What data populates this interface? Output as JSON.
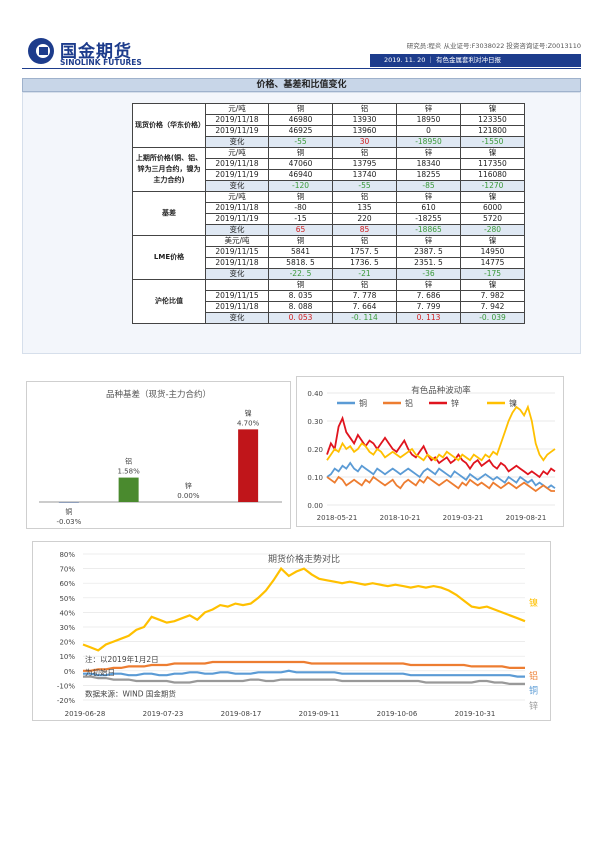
{
  "header": {
    "brand_cn": "国金期货",
    "brand_en": "SINOLINK FUTURES",
    "meta": "研究员:程炎  从业证号:F3038022  投资咨询证号:Z0013110",
    "date_tag": "2019. 11. 20  ｜ 有色金属套利对冲日报"
  },
  "section_title": "价格、基差和比值变化",
  "table": {
    "metals": [
      "铜",
      "铝",
      "锌",
      "镍"
    ],
    "groups": [
      {
        "name": "现货价格（华东价格）",
        "unit": "元/吨",
        "rows": [
          {
            "label": "2019/11/18",
            "values": [
              "46980",
              "13930",
              "18950",
              "123350"
            ]
          },
          {
            "label": "2019/11/19",
            "values": [
              "46925",
              "13960",
              "0",
              "121800"
            ]
          },
          {
            "label": "变化",
            "values": [
              "-55",
              "30",
              "-18950",
              "-1550"
            ]
          }
        ]
      },
      {
        "name": "上期所价格(铜、铝、锌为三月合约，镍为主力合约)",
        "unit": "元/吨",
        "rows": [
          {
            "label": "2019/11/18",
            "values": [
              "47060",
              "13795",
              "18340",
              "117350"
            ]
          },
          {
            "label": "2019/11/19",
            "values": [
              "46940",
              "13740",
              "18255",
              "116080"
            ]
          },
          {
            "label": "变化",
            "values": [
              "-120",
              "-55",
              "-85",
              "-1270"
            ]
          }
        ]
      },
      {
        "name": "基差",
        "unit": "元/吨",
        "rows": [
          {
            "label": "2019/11/18",
            "values": [
              "-80",
              "135",
              "610",
              "6000"
            ]
          },
          {
            "label": "2019/11/19",
            "values": [
              "-15",
              "220",
              "-18255",
              "5720"
            ]
          },
          {
            "label": "变化",
            "values": [
              "65",
              "85",
              "-18865",
              "-280"
            ]
          }
        ]
      },
      {
        "name": "LME价格",
        "unit": "美元/吨",
        "rows": [
          {
            "label": "2019/11/15",
            "values": [
              "5841",
              "1757. 5",
              "2387. 5",
              "14950"
            ]
          },
          {
            "label": "2019/11/18",
            "values": [
              "5818. 5",
              "1736. 5",
              "2351. 5",
              "14775"
            ]
          },
          {
            "label": "变化",
            "values": [
              "-22. 5",
              "-21",
              "-36",
              "-175"
            ]
          }
        ]
      },
      {
        "name": "沪伦比值",
        "unit": "",
        "rows": [
          {
            "label": "2019/11/15",
            "values": [
              "8. 035",
              "7. 778",
              "7. 686",
              "7. 982"
            ]
          },
          {
            "label": "2019/11/18",
            "values": [
              "8. 088",
              "7. 664",
              "7. 799",
              "7. 942"
            ]
          },
          {
            "label": "变化",
            "values": [
              "0. 053",
              "-0. 114",
              "0. 113",
              "-0. 039"
            ]
          }
        ]
      }
    ]
  },
  "chart_data": [
    {
      "type": "bar",
      "title": "品种基差（现货-主力合约）",
      "categories": [
        "铜",
        "铝",
        "锌",
        "镍"
      ],
      "values": [
        -0.03,
        1.58,
        0.0,
        4.7
      ],
      "value_labels": [
        "-0.03%",
        "1.58%",
        "0.00%",
        "4.70%"
      ],
      "colors": [
        "#1f3f7a",
        "#4a8a2e",
        "#999999",
        "#c0151a"
      ],
      "ylim": [
        -0.5,
        5.5
      ]
    },
    {
      "type": "line",
      "title": "有色品种波动率",
      "x_ticks": [
        "2018-05-21",
        "2018-10-21",
        "2019-03-21",
        "2019-08-21"
      ],
      "y_ticks": [
        "0.00",
        "0.10",
        "0.20",
        "0.30",
        "0.40"
      ],
      "ylim": [
        0,
        0.4
      ],
      "legend": "top",
      "series": [
        {
          "name": "铜",
          "color": "#5b9bd5",
          "values": [
            0.1,
            0.11,
            0.13,
            0.12,
            0.14,
            0.13,
            0.15,
            0.13,
            0.12,
            0.14,
            0.13,
            0.12,
            0.11,
            0.13,
            0.12,
            0.11,
            0.12,
            0.13,
            0.12,
            0.11,
            0.12,
            0.13,
            0.12,
            0.11,
            0.1,
            0.12,
            0.13,
            0.12,
            0.11,
            0.13,
            0.12,
            0.11,
            0.1,
            0.12,
            0.11,
            0.1,
            0.09,
            0.11,
            0.1,
            0.09,
            0.1,
            0.11,
            0.1,
            0.09,
            0.1,
            0.09,
            0.08,
            0.1,
            0.09,
            0.08,
            0.1,
            0.09,
            0.08,
            0.09,
            0.07,
            0.08,
            0.07,
            0.06,
            0.07,
            0.06
          ]
        },
        {
          "name": "铝",
          "color": "#ed7d31",
          "values": [
            0.1,
            0.09,
            0.08,
            0.1,
            0.09,
            0.07,
            0.08,
            0.09,
            0.08,
            0.07,
            0.09,
            0.08,
            0.1,
            0.09,
            0.08,
            0.07,
            0.08,
            0.09,
            0.07,
            0.06,
            0.08,
            0.09,
            0.08,
            0.07,
            0.09,
            0.08,
            0.1,
            0.09,
            0.08,
            0.07,
            0.08,
            0.09,
            0.08,
            0.07,
            0.06,
            0.08,
            0.07,
            0.09,
            0.08,
            0.07,
            0.08,
            0.07,
            0.06,
            0.08,
            0.07,
            0.06,
            0.07,
            0.08,
            0.07,
            0.06,
            0.07,
            0.08,
            0.07,
            0.06,
            0.05,
            0.06,
            0.07,
            0.06,
            0.05,
            0.05
          ]
        },
        {
          "name": "锌",
          "color": "#e0141e",
          "values": [
            0.18,
            0.22,
            0.2,
            0.28,
            0.31,
            0.26,
            0.24,
            0.22,
            0.25,
            0.23,
            0.21,
            0.23,
            0.22,
            0.2,
            0.22,
            0.24,
            0.22,
            0.2,
            0.19,
            0.21,
            0.23,
            0.2,
            0.18,
            0.17,
            0.19,
            0.21,
            0.18,
            0.16,
            0.17,
            0.15,
            0.16,
            0.17,
            0.15,
            0.16,
            0.18,
            0.16,
            0.15,
            0.13,
            0.15,
            0.16,
            0.14,
            0.15,
            0.16,
            0.14,
            0.13,
            0.15,
            0.14,
            0.12,
            0.13,
            0.14,
            0.13,
            0.12,
            0.11,
            0.12,
            0.11,
            0.1,
            0.12,
            0.11,
            0.13,
            0.12
          ]
        },
        {
          "name": "镍",
          "color": "#ffc000",
          "values": [
            0.16,
            0.18,
            0.2,
            0.19,
            0.22,
            0.2,
            0.21,
            0.19,
            0.2,
            0.22,
            0.21,
            0.19,
            0.18,
            0.2,
            0.19,
            0.17,
            0.18,
            0.19,
            0.18,
            0.17,
            0.18,
            0.19,
            0.2,
            0.18,
            0.17,
            0.16,
            0.18,
            0.17,
            0.16,
            0.18,
            0.17,
            0.19,
            0.18,
            0.17,
            0.16,
            0.18,
            0.17,
            0.16,
            0.18,
            0.17,
            0.16,
            0.18,
            0.17,
            0.19,
            0.18,
            0.22,
            0.26,
            0.3,
            0.33,
            0.35,
            0.34,
            0.32,
            0.35,
            0.3,
            0.22,
            0.18,
            0.16,
            0.18,
            0.19,
            0.2
          ]
        }
      ]
    },
    {
      "type": "line",
      "title": "期货价格走势对比",
      "x_ticks": [
        "2019-06-28",
        "2019-07-23",
        "2019-08-17",
        "2019-09-11",
        "2019-10-06",
        "2019-10-31"
      ],
      "y_ticks": [
        "-20%",
        "-10%",
        "0%",
        "10%",
        "20%",
        "30%",
        "40%",
        "50%",
        "60%",
        "70%",
        "80%"
      ],
      "ylim": [
        -20,
        80
      ],
      "annotation_lines": [
        "注：以2019年1月2日",
        "为初始日"
      ],
      "source": "数据来源：WIND 国金期货",
      "series": [
        {
          "name": "镍",
          "color": "#ffc000",
          "values": [
            18,
            16,
            14,
            18,
            20,
            22,
            24,
            28,
            30,
            37,
            35,
            33,
            34,
            36,
            38,
            35,
            40,
            42,
            45,
            44,
            46,
            45,
            46,
            50,
            55,
            62,
            70,
            65,
            68,
            70,
            66,
            63,
            62,
            61,
            60,
            61,
            60,
            59,
            60,
            59,
            58,
            59,
            58,
            57,
            58,
            57,
            58,
            57,
            55,
            52,
            48,
            44,
            43,
            44,
            42,
            40,
            38,
            36,
            34
          ]
        },
        {
          "name": "铝",
          "color": "#ed7d31",
          "values": [
            0,
            0,
            1,
            1,
            2,
            2,
            3,
            3,
            3,
            4,
            4,
            4,
            5,
            5,
            5,
            5,
            5,
            6,
            6,
            6,
            6,
            6,
            6,
            6,
            6,
            6,
            6,
            6,
            6,
            6,
            5,
            5,
            5,
            5,
            5,
            5,
            5,
            5,
            5,
            5,
            5,
            5,
            5,
            4,
            4,
            4,
            4,
            4,
            4,
            4,
            4,
            3,
            3,
            3,
            3,
            3,
            2,
            2,
            2
          ]
        },
        {
          "name": "铜",
          "color": "#5b9bd5",
          "values": [
            -2,
            -2,
            -3,
            -3,
            -2,
            -2,
            -3,
            -3,
            -2,
            -2,
            -3,
            -3,
            -2,
            -2,
            -1,
            -1,
            -2,
            -2,
            -1,
            -1,
            -2,
            -2,
            -2,
            -1,
            -1,
            -1,
            -1,
            0,
            -1,
            -1,
            -1,
            -1,
            -1,
            -1,
            -2,
            -2,
            -2,
            -2,
            -2,
            -2,
            -2,
            -2,
            -2,
            -3,
            -3,
            -3,
            -3,
            -3,
            -3,
            -3,
            -3,
            -3,
            -3,
            -3,
            -3,
            -3,
            -3,
            -4,
            -4
          ]
        },
        {
          "name": "锌",
          "color": "#999999",
          "values": [
            -4,
            -4,
            -5,
            -5,
            -6,
            -6,
            -6,
            -7,
            -7,
            -7,
            -7,
            -7,
            -8,
            -8,
            -8,
            -7,
            -7,
            -7,
            -7,
            -7,
            -7,
            -7,
            -6,
            -6,
            -7,
            -7,
            -6,
            -6,
            -6,
            -6,
            -6,
            -6,
            -6,
            -6,
            -7,
            -7,
            -7,
            -7,
            -7,
            -7,
            -7,
            -7,
            -7,
            -7,
            -7,
            -8,
            -8,
            -8,
            -8,
            -8,
            -8,
            -8,
            -7,
            -7,
            -8,
            -8,
            -9,
            -9,
            -9
          ]
        }
      ]
    }
  ]
}
